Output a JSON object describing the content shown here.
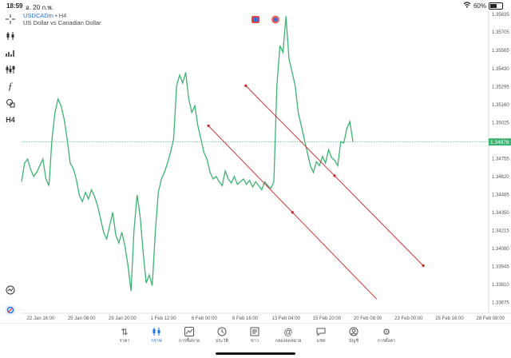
{
  "status": {
    "time": "18:59",
    "date": "อ. 20 ก.พ.",
    "battery": "60%",
    "battery_level": 0.6
  },
  "symbol": {
    "name": "USDCADm",
    "separator": " • ",
    "timeframe": "H4",
    "description": "US Dollar vs Canadian Dollar"
  },
  "toolbar": {
    "timeframe_label": "H4"
  },
  "chart_data": {
    "type": "line",
    "price_axis": [
      "1.35705",
      "1.35565",
      "1.35430",
      "1.35295",
      "1.35160",
      "1.35025",
      "1.34755",
      "1.34620",
      "1.34485",
      "1.34350",
      "1.34215",
      "1.34080",
      "1.33945",
      "1.33810",
      "1.33675"
    ],
    "price_axis_top": "1.35835",
    "current_price": "1.34878",
    "current_price_value": 1.34878,
    "time_axis": [
      "22 Jan 16:00",
      "25 Jan 08:00",
      "29 Jan 20:00",
      "1 Feb 12:00",
      "6 Feb 00:00",
      "8 Feb 16:00",
      "13 Feb 04:00",
      "15 Feb 20:00",
      "20 Feb 08:00",
      "23 Feb 00:00",
      "25 Feb 16:00",
      "28 Feb 08:00"
    ],
    "series": [
      {
        "color": "#3cb371",
        "values": [
          1.3458,
          1.3472,
          1.3475,
          1.3467,
          1.3462,
          1.3465,
          1.347,
          1.3475,
          1.346,
          1.3455,
          1.349,
          1.351,
          1.352,
          1.3515,
          1.3505,
          1.349,
          1.3472,
          1.3468,
          1.346,
          1.3448,
          1.3443,
          1.345,
          1.3445,
          1.3452,
          1.3447,
          1.344,
          1.343,
          1.342,
          1.3415,
          1.3425,
          1.3435,
          1.3418,
          1.3412,
          1.342,
          1.341,
          1.3395,
          1.3376,
          1.3422,
          1.3448,
          1.3432,
          1.3405,
          1.3382,
          1.3388,
          1.338,
          1.342,
          1.345,
          1.346,
          1.3465,
          1.3472,
          1.348,
          1.349,
          1.353,
          1.3538,
          1.3532,
          1.354,
          1.352,
          1.351,
          1.3515,
          1.35,
          1.349,
          1.348,
          1.3475,
          1.3465,
          1.346,
          1.3462,
          1.3458,
          1.3455,
          1.3466,
          1.346,
          1.3457,
          1.3462,
          1.3456,
          1.3458,
          1.346,
          1.3456,
          1.3459,
          1.3454,
          1.3458,
          1.3455,
          1.3452,
          1.3458,
          1.3455,
          1.3453,
          1.3458,
          1.353,
          1.356,
          1.3555,
          1.3582,
          1.355,
          1.354,
          1.353,
          1.351,
          1.35,
          1.349,
          1.348,
          1.347,
          1.3465,
          1.3473,
          1.347,
          1.3477,
          1.3472,
          1.3482,
          1.3476,
          1.3474,
          1.347,
          1.3488,
          1.3487,
          1.3498,
          1.3503,
          1.3488
        ]
      }
    ],
    "trendlines": [
      {
        "color": "#cc2222",
        "x_start": 0.4,
        "y_start": 1.35,
        "x_end": 0.76,
        "y_end": 1.337
      },
      {
        "color": "#cc2222",
        "x_start": 0.48,
        "y_start": 1.353,
        "x_end": 0.86,
        "y_end": 1.3395
      }
    ]
  },
  "nav": [
    {
      "label": "ราคา",
      "icon": "quotes-icon"
    },
    {
      "label": "กราฟ",
      "icon": "chart-icon",
      "active": true
    },
    {
      "label": "การซื้อขาย",
      "icon": "trade-icon"
    },
    {
      "label": "ประวัติ",
      "icon": "history-icon"
    },
    {
      "label": "ข่าว",
      "icon": "news-icon"
    },
    {
      "label": "กล่องจดหมาย",
      "icon": "mailbox-icon"
    },
    {
      "label": "แชท",
      "icon": "chat-icon"
    },
    {
      "label": "บัญชี",
      "icon": "account-icon"
    },
    {
      "label": "การตั้งค่า",
      "icon": "settings-icon"
    }
  ]
}
